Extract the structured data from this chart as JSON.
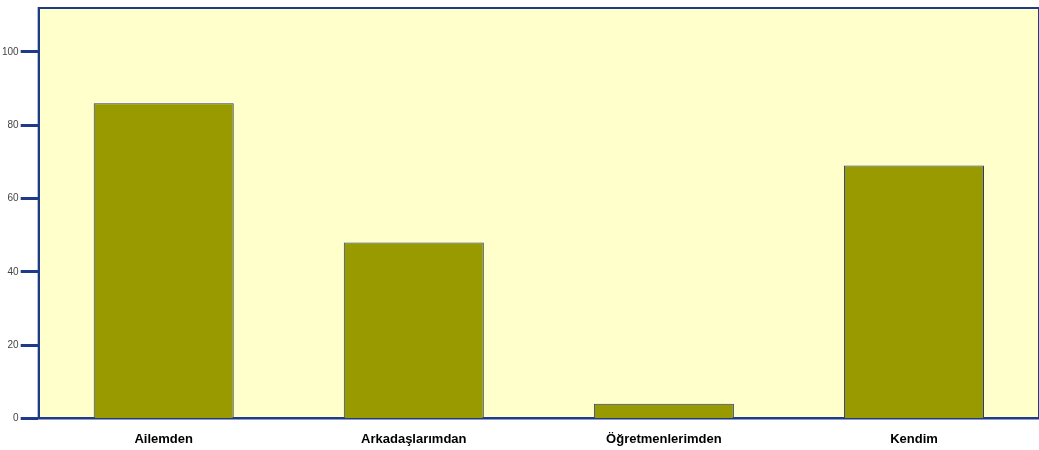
{
  "chart_data": {
    "type": "bar",
    "categories": [
      "Ailemden",
      "Arkadaşlarımdan",
      "Öğretmenlerimden",
      "Kendim"
    ],
    "values": [
      86,
      48,
      4,
      69
    ],
    "color": "#999900",
    "ylim": [
      0,
      112
    ],
    "yticks": [
      0,
      20,
      40,
      60,
      80,
      100
    ],
    "grid": false,
    "legend": false
  }
}
